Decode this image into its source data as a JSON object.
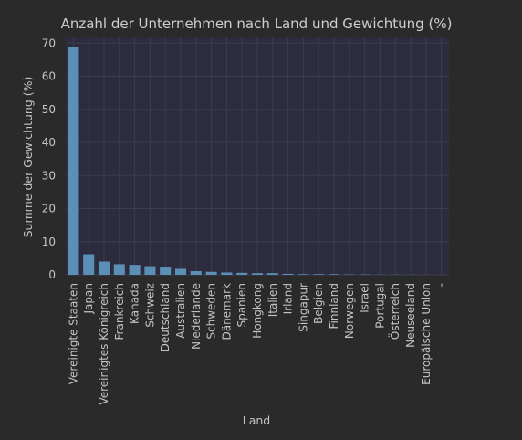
{
  "chart_data": {
    "type": "bar",
    "title": "Anzahl der Unternehmen nach Land und Gewichtung (%)",
    "xlabel": "Land",
    "ylabel": "Summe der Gewichtung (%)",
    "ylim": [
      0,
      72
    ],
    "yticks": [
      0,
      10,
      20,
      30,
      40,
      50,
      60,
      70
    ],
    "grid": true,
    "categories": [
      "Vereinigte Staaten",
      "Japan",
      "Vereinigtes Königreich",
      "Frankreich",
      "Kanada",
      "Schweiz",
      "Deutschland",
      "Australien",
      "Niederlande",
      "Schweden",
      "Dänemark",
      "Spanien",
      "Hongkong",
      "Italien",
      "Irland",
      "Singapur",
      "Belgien",
      "Finnland",
      "Norwegen",
      "Israel",
      "Portugal",
      "Österreich",
      "Neuseeland",
      "Europäische Union",
      "-"
    ],
    "values": [
      68.8,
      6.2,
      4.0,
      3.2,
      3.0,
      2.6,
      2.2,
      1.8,
      1.1,
      0.9,
      0.7,
      0.6,
      0.5,
      0.5,
      0.3,
      0.2,
      0.2,
      0.2,
      0.1,
      0.1,
      0.05,
      0.05,
      0.03,
      0.02,
      0.01
    ],
    "colors": {
      "bar": "#5c8fb5",
      "plot_bg": "#2c2c3e",
      "page_bg": "#2a2a2a",
      "grid": "#3c3c50",
      "text": "#c4c4c4"
    }
  }
}
